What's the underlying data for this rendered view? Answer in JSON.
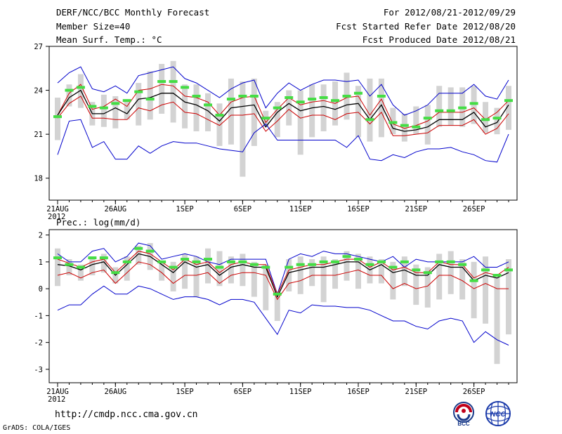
{
  "header": {
    "title": "DERF/NCC/BCC Monthly Forecast",
    "member_size": "Member Size=40",
    "panel1_variable": "Mean Surf. Temp.: °C",
    "period": "For 2012/08/21-2012/09/29",
    "fcst_started": "Fcst Started Refer Date 2012/08/20",
    "fcst_produced": "Fcst Produced Date 2012/08/21"
  },
  "footer": {
    "url": "http://cmdp.ncc.cma.gov.cn",
    "grads": "GrADS: COLA/IGES",
    "logo_left": "BCC",
    "logo_right": "NCC"
  },
  "colors": {
    "ensemble_bar": "#d3d3d3",
    "envelope": "#0000cc",
    "spread": "#cc0000",
    "mean": "#000000",
    "member_mark": "#44dd44"
  },
  "chart_data": [
    {
      "type": "line",
      "title": "Mean Surf. Temp.: °C",
      "x_tick_labels": [
        "21AUG",
        "26AUG",
        "1SEP",
        "6SEP",
        "11SEP",
        "16SEP",
        "21SEP",
        "26SEP"
      ],
      "x_year_label": "2012",
      "x_tick_days": [
        1,
        6,
        12,
        17,
        22,
        27,
        32,
        37
      ],
      "x_range": [
        1,
        40
      ],
      "ylim": [
        16.5,
        27
      ],
      "y_ticks": [
        18,
        21,
        24,
        27
      ],
      "days": [
        1,
        2,
        3,
        4,
        5,
        6,
        7,
        8,
        9,
        10,
        11,
        12,
        13,
        14,
        15,
        16,
        17,
        18,
        19,
        20,
        21,
        22,
        23,
        24,
        25,
        26,
        27,
        28,
        29,
        30,
        31,
        32,
        33,
        34,
        35,
        36,
        37,
        38,
        39,
        40
      ],
      "series": [
        {
          "name": "upper envelope",
          "values": [
            24.5,
            25.2,
            25.6,
            24.1,
            23.9,
            24.3,
            23.8,
            25.0,
            25.2,
            25.4,
            25.6,
            24.8,
            24.5,
            24.0,
            23.5,
            24.1,
            24.5,
            24.7,
            22.8,
            23.8,
            24.5,
            24.0,
            24.4,
            24.7,
            24.7,
            24.6,
            24.7,
            23.6,
            24.4,
            23.0,
            22.3,
            22.6,
            23.0,
            23.8,
            23.8,
            23.8,
            24.4,
            23.6,
            23.4,
            24.7
          ]
        },
        {
          "name": "upper spread",
          "values": [
            22.3,
            23.8,
            24.4,
            22.7,
            22.9,
            23.4,
            22.9,
            24.0,
            24.1,
            24.4,
            24.3,
            23.6,
            23.5,
            23.2,
            22.3,
            23.2,
            23.5,
            23.6,
            21.8,
            22.7,
            23.5,
            23.0,
            23.2,
            23.3,
            23.1,
            23.5,
            23.6,
            22.3,
            23.4,
            21.7,
            21.4,
            21.6,
            21.9,
            22.5,
            22.5,
            22.5,
            22.8,
            22.0,
            22.5,
            23.3
          ]
        },
        {
          "name": "ensemble mean",
          "values": [
            22.3,
            23.5,
            24.0,
            22.4,
            22.4,
            22.8,
            22.4,
            23.4,
            23.5,
            23.8,
            23.8,
            23.2,
            23.0,
            22.6,
            21.9,
            22.8,
            22.9,
            23.0,
            21.5,
            22.5,
            23.1,
            22.6,
            22.8,
            22.9,
            22.7,
            23.0,
            23.1,
            22.0,
            23.0,
            21.4,
            21.2,
            21.3,
            21.5,
            22.0,
            22.0,
            22.0,
            22.5,
            21.5,
            21.8,
            23.0
          ]
        },
        {
          "name": "lower spread",
          "values": [
            22.1,
            23.1,
            23.6,
            22.1,
            22.1,
            22.0,
            22.0,
            22.8,
            22.6,
            23.0,
            23.2,
            22.5,
            22.4,
            22.0,
            21.6,
            22.3,
            22.3,
            22.4,
            21.2,
            21.9,
            22.7,
            22.1,
            22.3,
            22.3,
            22.0,
            22.4,
            22.5,
            21.7,
            22.5,
            20.9,
            20.9,
            21.0,
            21.1,
            21.6,
            21.6,
            21.6,
            22.0,
            21.0,
            21.4,
            22.4
          ]
        },
        {
          "name": "lower envelope",
          "values": [
            19.6,
            21.9,
            22.0,
            20.1,
            20.5,
            19.3,
            19.3,
            20.2,
            19.7,
            20.2,
            20.5,
            20.4,
            20.4,
            20.2,
            20.0,
            19.9,
            19.8,
            21.1,
            21.7,
            20.6,
            20.6,
            20.6,
            20.6,
            20.6,
            20.6,
            20.1,
            20.9,
            19.3,
            19.2,
            19.6,
            19.4,
            19.8,
            20.0,
            20.0,
            20.1,
            19.8,
            19.6,
            19.2,
            19.1,
            21.0
          ]
        },
        {
          "name": "members",
          "values": [
            22.2,
            24.0,
            24.2,
            22.9,
            22.8,
            23.1,
            23.3,
            23.9,
            23.4,
            24.6,
            24.6,
            24.2,
            23.6,
            23.0,
            22.3,
            23.4,
            23.6,
            23.6,
            22.1,
            22.8,
            23.5,
            23.2,
            23.4,
            23.5,
            23.3,
            23.6,
            23.8,
            22.0,
            23.6,
            21.8,
            21.6,
            21.5,
            22.1,
            22.6,
            22.6,
            22.8,
            23.1,
            22.0,
            22.1,
            23.3
          ]
        }
      ],
      "bars": [
        {
          "lo": 20.6,
          "hi": 23.5
        },
        {
          "lo": 22.9,
          "hi": 24.4
        },
        {
          "lo": 22.8,
          "hi": 25.1
        },
        {
          "lo": 21.6,
          "hi": 23.2
        },
        {
          "lo": 21.5,
          "hi": 23.7
        },
        {
          "lo": 21.4,
          "hi": 23.6
        },
        {
          "lo": 22.0,
          "hi": 23.3
        },
        {
          "lo": 21.6,
          "hi": 24.5
        },
        {
          "lo": 22.0,
          "hi": 25.3
        },
        {
          "lo": 22.4,
          "hi": 25.8
        },
        {
          "lo": 21.8,
          "hi": 26.0
        },
        {
          "lo": 21.4,
          "hi": 24.4
        },
        {
          "lo": 21.2,
          "hi": 24.4
        },
        {
          "lo": 21.2,
          "hi": 23.8
        },
        {
          "lo": 20.2,
          "hi": 23.1
        },
        {
          "lo": 20.3,
          "hi": 24.8
        },
        {
          "lo": 18.1,
          "hi": 24.6
        },
        {
          "lo": 20.2,
          "hi": 24.8
        },
        {
          "lo": 21.5,
          "hi": 22.6
        },
        {
          "lo": 20.8,
          "hi": 23.2
        },
        {
          "lo": 21.6,
          "hi": 24.0
        },
        {
          "lo": 19.6,
          "hi": 24.0
        },
        {
          "lo": 20.8,
          "hi": 24.4
        },
        {
          "lo": 21.2,
          "hi": 24.4
        },
        {
          "lo": 21.6,
          "hi": 24.6
        },
        {
          "lo": 22.0,
          "hi": 25.2
        },
        {
          "lo": 20.8,
          "hi": 24.3
        },
        {
          "lo": 20.5,
          "hi": 24.8
        },
        {
          "lo": 20.8,
          "hi": 24.8
        },
        {
          "lo": 21.0,
          "hi": 22.8
        },
        {
          "lo": 20.5,
          "hi": 22.4
        },
        {
          "lo": 21.0,
          "hi": 22.9
        },
        {
          "lo": 20.3,
          "hi": 23.0
        },
        {
          "lo": 21.5,
          "hi": 24.3
        },
        {
          "lo": 21.6,
          "hi": 24.2
        },
        {
          "lo": 21.5,
          "hi": 24.2
        },
        {
          "lo": 21.7,
          "hi": 24.3
        },
        {
          "lo": 21.1,
          "hi": 23.2
        },
        {
          "lo": 21.0,
          "hi": 22.8
        },
        {
          "lo": 21.3,
          "hi": 24.3
        }
      ]
    },
    {
      "type": "line",
      "title": "Prec.: log(mm/d)",
      "x_tick_labels": [
        "21AUG",
        "26AUG",
        "1SEP",
        "6SEP",
        "11SEP",
        "16SEP",
        "21SEP",
        "26SEP"
      ],
      "x_year_label": "2012",
      "x_tick_days": [
        1,
        6,
        12,
        17,
        22,
        27,
        32,
        37
      ],
      "x_range": [
        1,
        40
      ],
      "ylim": [
        -3.5,
        2.2
      ],
      "y_ticks": [
        -3,
        -2,
        -1,
        0,
        1,
        2
      ],
      "days": [
        1,
        2,
        3,
        4,
        5,
        6,
        7,
        8,
        9,
        10,
        11,
        12,
        13,
        14,
        15,
        16,
        17,
        18,
        19,
        20,
        21,
        22,
        23,
        24,
        25,
        26,
        27,
        28,
        29,
        30,
        31,
        32,
        33,
        34,
        35,
        36,
        37,
        38,
        39,
        40
      ],
      "series": [
        {
          "name": "upper envelope",
          "values": [
            1.3,
            1.0,
            1.0,
            1.4,
            1.5,
            1.0,
            1.2,
            1.7,
            1.6,
            1.1,
            1.2,
            1.3,
            1.2,
            1.0,
            0.9,
            1.1,
            1.1,
            1.1,
            1.1,
            -0.2,
            1.1,
            1.3,
            1.2,
            1.4,
            1.3,
            1.3,
            1.2,
            1.1,
            1.0,
            1.2,
            0.8,
            1.1,
            1.0,
            1.0,
            1.0,
            1.0,
            1.2,
            0.8,
            0.8,
            1.0
          ]
        },
        {
          "name": "upper spread",
          "values": [
            1.1,
            0.95,
            0.8,
            1.0,
            1.1,
            0.6,
            1.0,
            1.4,
            1.3,
            1.0,
            0.7,
            1.1,
            0.9,
            1.0,
            0.6,
            0.9,
            1.0,
            0.9,
            0.9,
            -0.2,
            0.7,
            0.8,
            0.9,
            0.9,
            1.0,
            1.1,
            1.1,
            0.8,
            1.0,
            0.7,
            0.8,
            0.6,
            0.6,
            1.0,
            0.9,
            0.9,
            0.4,
            0.6,
            0.5,
            0.8
          ]
        },
        {
          "name": "ensemble mean",
          "values": [
            0.9,
            0.85,
            0.7,
            0.9,
            1.0,
            0.5,
            0.9,
            1.3,
            1.2,
            0.9,
            0.6,
            1.0,
            0.8,
            0.9,
            0.5,
            0.8,
            0.9,
            0.8,
            0.8,
            -0.3,
            0.6,
            0.7,
            0.8,
            0.8,
            0.9,
            1.0,
            1.0,
            0.7,
            0.9,
            0.6,
            0.7,
            0.5,
            0.5,
            0.9,
            0.8,
            0.8,
            0.3,
            0.5,
            0.4,
            0.6
          ]
        },
        {
          "name": "lower spread",
          "values": [
            0.5,
            0.6,
            0.4,
            0.6,
            0.7,
            0.2,
            0.6,
            1.0,
            0.9,
            0.6,
            0.2,
            0.5,
            0.5,
            0.6,
            0.2,
            0.5,
            0.6,
            0.6,
            0.5,
            -0.4,
            0.2,
            0.3,
            0.5,
            0.5,
            0.5,
            0.6,
            0.7,
            0.5,
            0.5,
            0.0,
            0.2,
            0.0,
            0.1,
            0.5,
            0.5,
            0.3,
            0.0,
            0.2,
            0.0,
            0.0
          ]
        },
        {
          "name": "lower envelope",
          "values": [
            -0.8,
            -0.6,
            -0.6,
            -0.2,
            0.1,
            -0.2,
            -0.2,
            0.1,
            0.0,
            -0.2,
            -0.4,
            -0.3,
            -0.3,
            -0.4,
            -0.6,
            -0.4,
            -0.4,
            -0.5,
            -1.1,
            -1.7,
            -0.8,
            -0.9,
            -0.6,
            -0.65,
            -0.65,
            -0.7,
            -0.7,
            -0.8,
            -1.0,
            -1.2,
            -1.2,
            -1.4,
            -1.5,
            -1.2,
            -1.1,
            -1.2,
            -2.0,
            -1.6,
            -1.9,
            -2.1
          ]
        },
        {
          "name": "members",
          "values": [
            1.15,
            0.9,
            0.8,
            1.15,
            1.15,
            0.6,
            1.0,
            1.5,
            1.4,
            1.0,
            0.8,
            1.1,
            1.0,
            1.1,
            0.8,
            1.0,
            1.0,
            0.9,
            0.8,
            -0.2,
            0.8,
            0.9,
            0.9,
            1.0,
            1.0,
            1.2,
            1.1,
            0.9,
            1.0,
            0.8,
            1.0,
            0.7,
            0.6,
            1.0,
            1.0,
            0.9,
            0.3,
            0.7,
            0.5,
            0.7
          ]
        }
      ],
      "bars": [
        {
          "lo": 0.1,
          "hi": 1.5
        },
        {
          "lo": 0.5,
          "hi": 1.1
        },
        {
          "lo": 0.3,
          "hi": 0.9
        },
        {
          "lo": 0.5,
          "hi": 1.2
        },
        {
          "lo": 0.6,
          "hi": 1.3
        },
        {
          "lo": 0.2,
          "hi": 0.8
        },
        {
          "lo": 0.3,
          "hi": 1.2
        },
        {
          "lo": 0.9,
          "hi": 1.6
        },
        {
          "lo": 0.7,
          "hi": 1.7
        },
        {
          "lo": 0.3,
          "hi": 1.0
        },
        {
          "lo": -0.1,
          "hi": 1.0
        },
        {
          "lo": 0.0,
          "hi": 1.3
        },
        {
          "lo": -0.3,
          "hi": 1.2
        },
        {
          "lo": 0.2,
          "hi": 1.5
        },
        {
          "lo": 0.1,
          "hi": 1.4
        },
        {
          "lo": 0.2,
          "hi": 1.2
        },
        {
          "lo": 0.1,
          "hi": 1.3
        },
        {
          "lo": -0.3,
          "hi": 1.0
        },
        {
          "lo": -0.8,
          "hi": 0.9
        },
        {
          "lo": -1.2,
          "hi": -0.1
        },
        {
          "lo": -0.1,
          "hi": 1.1
        },
        {
          "lo": -0.2,
          "hi": 1.2
        },
        {
          "lo": 0.1,
          "hi": 1.1
        },
        {
          "lo": -0.5,
          "hi": 1.2
        },
        {
          "lo": 0.0,
          "hi": 1.1
        },
        {
          "lo": 0.3,
          "hi": 1.4
        },
        {
          "lo": 0.0,
          "hi": 1.3
        },
        {
          "lo": 0.2,
          "hi": 1.2
        },
        {
          "lo": 0.2,
          "hi": 1.1
        },
        {
          "lo": -0.4,
          "hi": 1.0
        },
        {
          "lo": 0.1,
          "hi": 1.2
        },
        {
          "lo": -0.6,
          "hi": 0.9
        },
        {
          "lo": -0.7,
          "hi": 0.8
        },
        {
          "lo": -0.4,
          "hi": 1.3
        },
        {
          "lo": -0.2,
          "hi": 1.4
        },
        {
          "lo": -0.4,
          "hi": 1.1
        },
        {
          "lo": -1.1,
          "hi": 1.0
        },
        {
          "lo": -1.3,
          "hi": 1.2
        },
        {
          "lo": -2.8,
          "hi": 0.4
        },
        {
          "lo": -1.7,
          "hi": 1.1
        }
      ]
    }
  ]
}
